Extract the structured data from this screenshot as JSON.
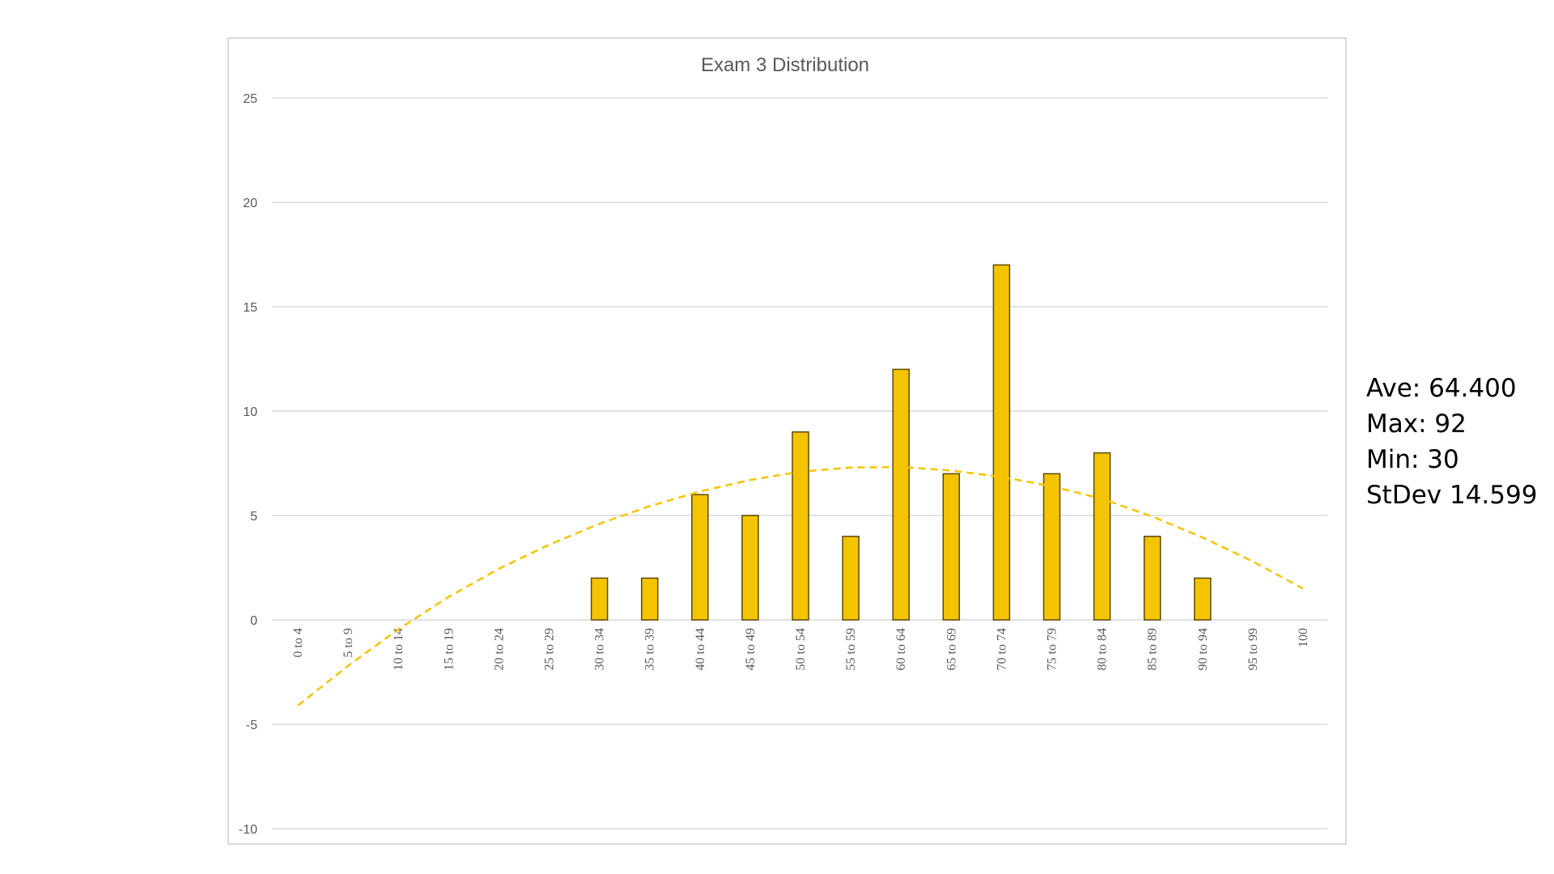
{
  "stats": {
    "average": "Ave: 64.400",
    "max": "Max: 92",
    "min": "Min: 30",
    "stdev": "StDev 14.599"
  },
  "chart_data": {
    "type": "bar",
    "title": "Exam 3 Distribution",
    "xlabel": "",
    "ylabel": "",
    "categories": [
      "0 to 4",
      "5 to 9",
      "10 to 14",
      "15 to 19",
      "20 to 24",
      "25 to 29",
      "30 to 34",
      "35 to 39",
      "40 to 44",
      "45 to 49",
      "50 to 54",
      "55 to 59",
      "60 to 64",
      "65 to 69",
      "70 to 74",
      "75 to 79",
      "80 to 84",
      "85 to 89",
      "90 to 94",
      "95 to 99",
      "100"
    ],
    "series": [
      {
        "values": [
          0,
          0,
          0,
          0,
          0,
          0,
          2,
          2,
          6,
          5,
          9,
          4,
          12,
          7,
          17,
          7,
          8,
          4,
          2,
          0,
          0
        ],
        "color": "#f5c400",
        "stroke": "#5a4a00"
      }
    ],
    "trendline": {
      "type": "polynomial",
      "style": "dashed",
      "color": "#f5c400",
      "values": [
        -4.1,
        -2.2,
        -0.45,
        1.1,
        2.45,
        3.6,
        4.6,
        5.45,
        6.15,
        6.7,
        7.1,
        7.3,
        7.32,
        7.15,
        6.85,
        6.4,
        5.8,
        4.95,
        3.95,
        2.8,
        1.5
      ]
    },
    "ylim": [
      -10,
      25
    ],
    "yticks": [
      -10,
      -5,
      0,
      5,
      10,
      15,
      20,
      25
    ],
    "grid": true,
    "legend": "none"
  }
}
